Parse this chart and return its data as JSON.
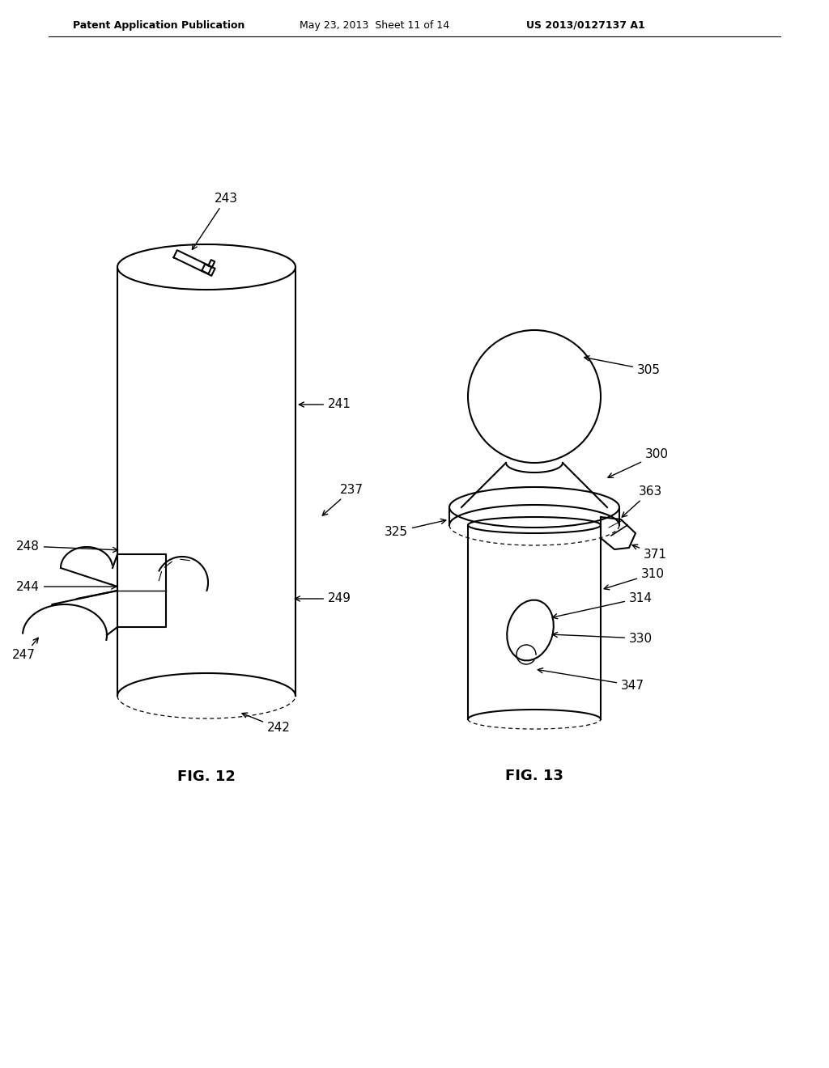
{
  "background_color": "#ffffff",
  "header_left": "Patent Application Publication",
  "header_mid": "May 23, 2013  Sheet 11 of 14",
  "header_right": "US 2013/0127137 A1",
  "fig12_label": "FIG. 12",
  "fig13_label": "FIG. 13",
  "line_color": "#000000",
  "line_width": 1.5,
  "label_fontsize": 11,
  "header_fontsize": 9,
  "fig_label_fontsize": 13
}
